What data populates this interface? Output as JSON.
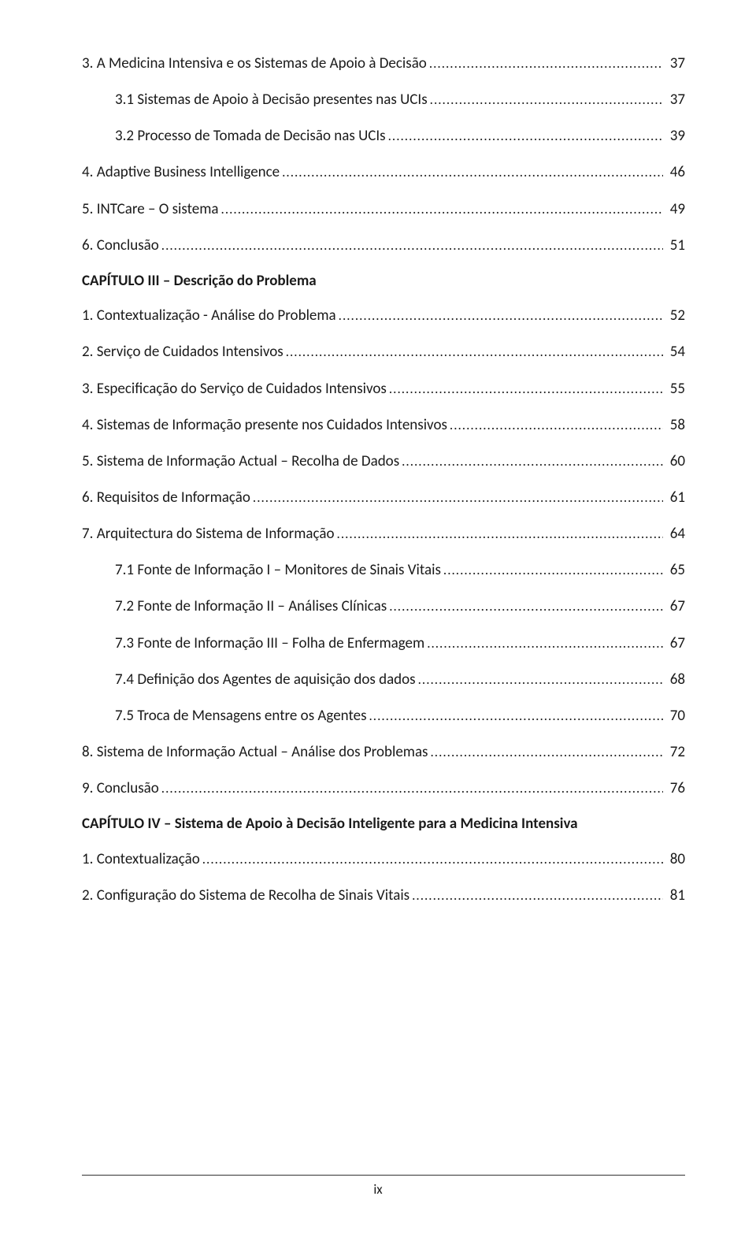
{
  "entries": [
    {
      "level": 1,
      "text": "3.   A Medicina Intensiva e os Sistemas de Apoio à Decisão",
      "page": "37"
    },
    {
      "level": 2,
      "text": "3.1     Sistemas de Apoio à Decisão presentes nas UCIs",
      "page": "37"
    },
    {
      "level": 2,
      "text": "3.2     Processo de Tomada de Decisão nas UCIs",
      "page": " 39"
    },
    {
      "level": 1,
      "text": "4.   Adaptive Business Intelligence",
      "page": " 46"
    },
    {
      "level": 1,
      "text": "5.   INTCare – O sistema",
      "page": " 49"
    },
    {
      "level": 1,
      "text": "6.   Conclusão",
      "page": "51"
    },
    {
      "type": "chapter",
      "text": "CAPÍTULO III – Descrição do Problema"
    },
    {
      "level": 1,
      "text": "1.   Contextualização - Análise do Problema",
      "page": " 52"
    },
    {
      "level": 1,
      "text": "2.   Serviço de Cuidados Intensivos",
      "page": " 54"
    },
    {
      "level": 1,
      "text": "3.   Especificação do Serviço de Cuidados Intensivos",
      "page": " 55"
    },
    {
      "level": 1,
      "text": "4.   Sistemas de Informação presente nos Cuidados Intensivos",
      "page": " 58"
    },
    {
      "level": 1,
      "text": "5.   Sistema de Informação Actual – Recolha de Dados",
      "page": " 60"
    },
    {
      "level": 1,
      "text": "6.   Requisitos de Informação",
      "page": " 61"
    },
    {
      "level": 1,
      "text": "7.   Arquitectura do Sistema de Informação",
      "page": " 64"
    },
    {
      "level": 2,
      "text": "7.1     Fonte de Informação I – Monitores de Sinais Vitais",
      "page": " 65"
    },
    {
      "level": 2,
      "text": "7.2     Fonte de Informação II – Análises Clínicas",
      "page": " 67"
    },
    {
      "level": 2,
      "text": "7.3     Fonte de Informação III – Folha de Enfermagem",
      "page": " 67"
    },
    {
      "level": 2,
      "text": "7.4     Definição dos Agentes de aquisição dos dados",
      "page": " 68"
    },
    {
      "level": 2,
      "text": "7.5     Troca de Mensagens entre os Agentes",
      "page": " 70"
    },
    {
      "level": 1,
      "text": "8.   Sistema de Informação Actual – Análise dos Problemas",
      "page": " 72"
    },
    {
      "level": 1,
      "text": "9.   Conclusão",
      "page": " 76"
    },
    {
      "type": "chapter",
      "text": "CAPÍTULO IV – Sistema de Apoio à Decisão Inteligente para a Medicina Intensiva"
    },
    {
      "level": 1,
      "text": "1.   Contextualização",
      "page": " 80"
    },
    {
      "level": 1,
      "text": "2.   Configuração do Sistema de Recolha de Sinais Vitais",
      "page": " 81"
    }
  ],
  "page_num": "ix"
}
